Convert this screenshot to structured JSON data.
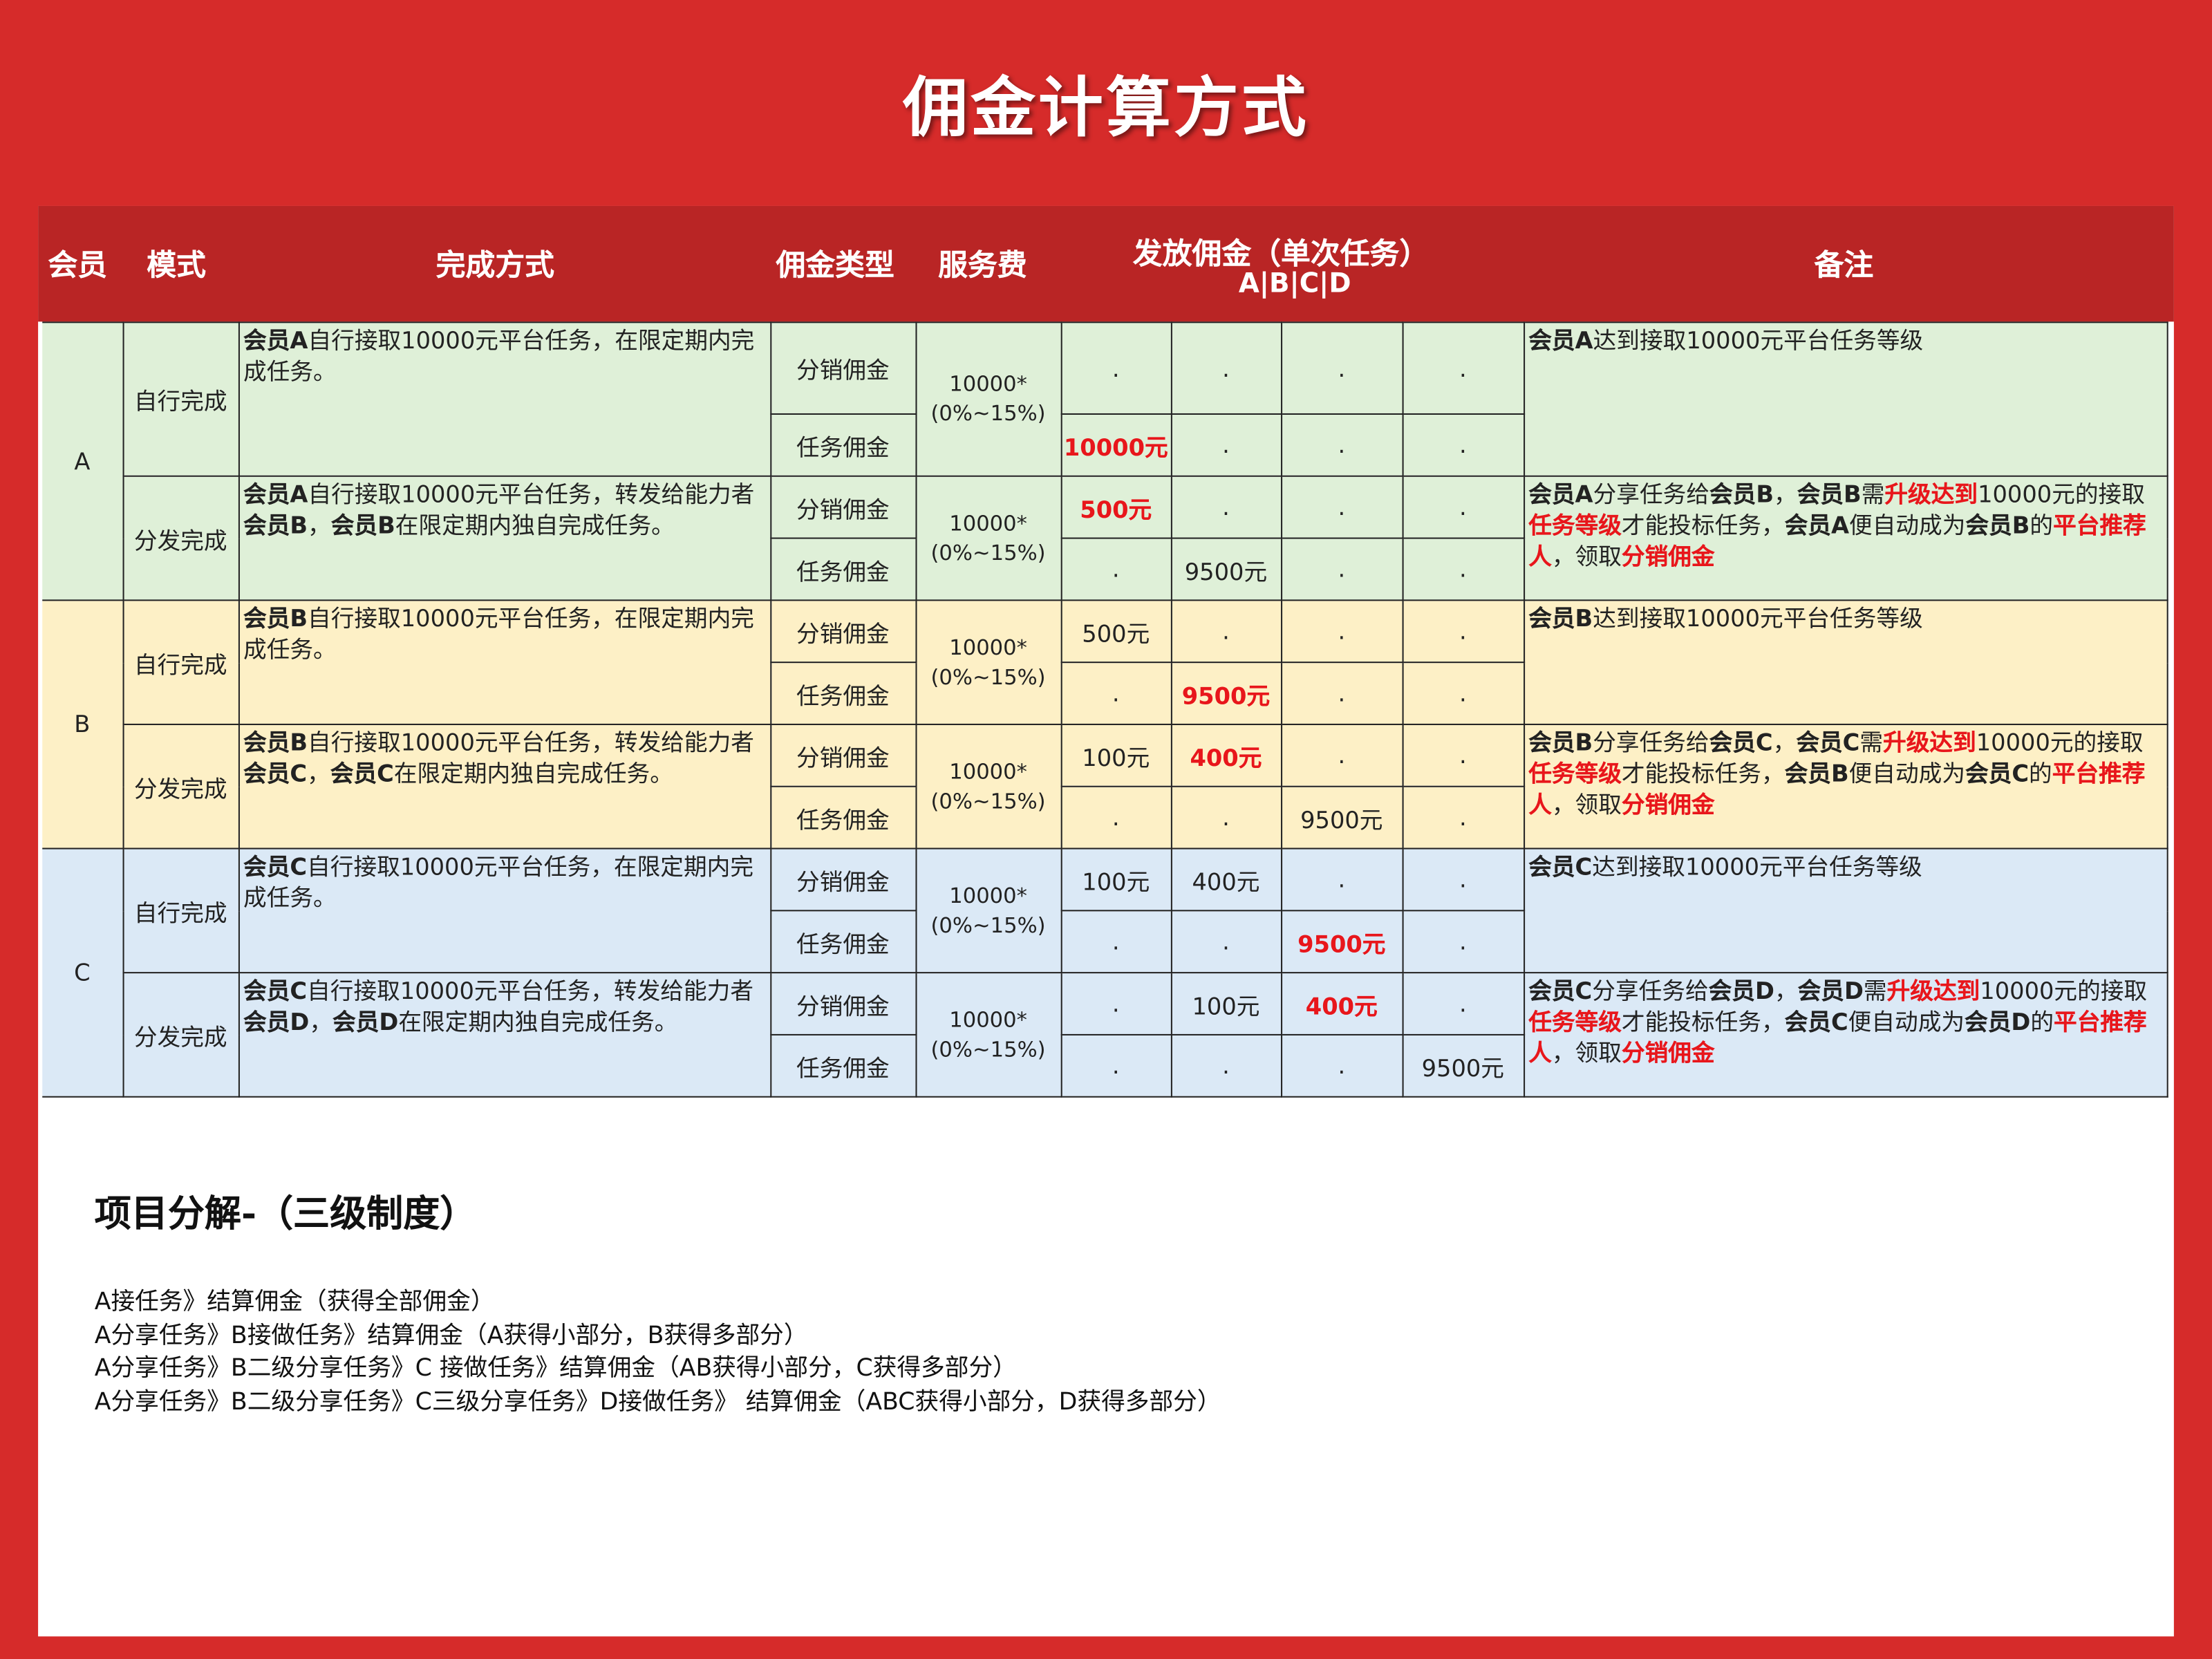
{
  "title": "佣金计算方式",
  "colors": {
    "background": "#d62b2a",
    "header": "#b92525",
    "highlight": "#e8161b",
    "groupA": "#dff0d8",
    "groupB": "#fdf0c6",
    "groupC": "#dbe9f6"
  },
  "header": {
    "member": "会员",
    "mode": "模式",
    "method": "完成方式",
    "type": "佣金类型",
    "fee": "服务费",
    "payout": "发放佣金（单次任务）",
    "payout_sub": "A|B|C|D",
    "note": "备注"
  },
  "groups": [
    {
      "member": "A",
      "modes": [
        {
          "label": "自行完成",
          "desc": [
            {
              "t": "会员A",
              "s": "b"
            },
            {
              "t": "自行接取10000元平台任务，在限定期内完成任务。",
              "s": ""
            }
          ],
          "fee": [
            "10000*",
            "(0%~15%)"
          ],
          "rows": [
            {
              "type": "分销佣金",
              "values": [
                {
                  "v": "."
                },
                {
                  "v": "."
                },
                {
                  "v": "."
                },
                {
                  "v": "."
                }
              ]
            },
            {
              "type": "任务佣金",
              "values": [
                {
                  "v": "10000元",
                  "red": true
                },
                {
                  "v": "."
                },
                {
                  "v": "."
                },
                {
                  "v": "."
                }
              ]
            }
          ],
          "note": [
            {
              "t": "会员A",
              "s": "b"
            },
            {
              "t": "达到接取10000元平台任务等级",
              "s": ""
            }
          ]
        },
        {
          "label": "分发完成",
          "desc": [
            {
              "t": "会员A",
              "s": "b"
            },
            {
              "t": "自行接取10000元平台任务，转发给能力者",
              "s": ""
            },
            {
              "t": "会员B",
              "s": "b"
            },
            {
              "t": "，",
              "s": ""
            },
            {
              "t": "会员B",
              "s": "b"
            },
            {
              "t": "在限定期内独自完成任务。",
              "s": ""
            }
          ],
          "fee": [
            "10000*",
            "(0%~15%)"
          ],
          "rows": [
            {
              "type": "分销佣金",
              "values": [
                {
                  "v": "500元",
                  "red": true
                },
                {
                  "v": "."
                },
                {
                  "v": "."
                },
                {
                  "v": "."
                }
              ]
            },
            {
              "type": "任务佣金",
              "values": [
                {
                  "v": "."
                },
                {
                  "v": "9500元"
                },
                {
                  "v": "."
                },
                {
                  "v": "."
                }
              ]
            }
          ],
          "note": [
            {
              "t": "会员A",
              "s": "b"
            },
            {
              "t": "分享任务给",
              "s": ""
            },
            {
              "t": "会员B",
              "s": "b"
            },
            {
              "t": "，",
              "s": ""
            },
            {
              "t": "会员B",
              "s": "b"
            },
            {
              "t": "需",
              "s": ""
            },
            {
              "t": "升级达到",
              "s": "r"
            },
            {
              "t": "10000元的接取",
              "s": ""
            },
            {
              "t": "任务等级",
              "s": "r"
            },
            {
              "t": "才能投标任务，",
              "s": ""
            },
            {
              "t": "会员A",
              "s": "b"
            },
            {
              "t": "便自动成为",
              "s": ""
            },
            {
              "t": "会员B",
              "s": "b"
            },
            {
              "t": "的",
              "s": ""
            },
            {
              "t": "平台推荐人",
              "s": "r"
            },
            {
              "t": "，领取",
              "s": ""
            },
            {
              "t": "分销佣金",
              "s": "r"
            }
          ]
        }
      ]
    },
    {
      "member": "B",
      "modes": [
        {
          "label": "自行完成",
          "desc": [
            {
              "t": "会员B",
              "s": "b"
            },
            {
              "t": "自行接取10000元平台任务，在限定期内完成任务。",
              "s": ""
            }
          ],
          "fee": [
            "10000*",
            "(0%~15%)"
          ],
          "rows": [
            {
              "type": "分销佣金",
              "values": [
                {
                  "v": "500元"
                },
                {
                  "v": "."
                },
                {
                  "v": "."
                },
                {
                  "v": "."
                }
              ]
            },
            {
              "type": "任务佣金",
              "values": [
                {
                  "v": "."
                },
                {
                  "v": "9500元",
                  "red": true
                },
                {
                  "v": "."
                },
                {
                  "v": "."
                }
              ]
            }
          ],
          "note": [
            {
              "t": "会员B",
              "s": "b"
            },
            {
              "t": "达到接取10000元平台任务等级",
              "s": ""
            }
          ]
        },
        {
          "label": "分发完成",
          "desc": [
            {
              "t": "会员B",
              "s": "b"
            },
            {
              "t": "自行接取10000元平台任务，转发给能力者",
              "s": ""
            },
            {
              "t": "会员C",
              "s": "b"
            },
            {
              "t": "，",
              "s": ""
            },
            {
              "t": "会员C",
              "s": "b"
            },
            {
              "t": "在限定期内独自完成任务。",
              "s": ""
            }
          ],
          "fee": [
            "10000*",
            "(0%~15%)"
          ],
          "rows": [
            {
              "type": "分销佣金",
              "values": [
                {
                  "v": "100元"
                },
                {
                  "v": "400元",
                  "red": true
                },
                {
                  "v": "."
                },
                {
                  "v": "."
                }
              ]
            },
            {
              "type": "任务佣金",
              "values": [
                {
                  "v": "."
                },
                {
                  "v": "."
                },
                {
                  "v": "9500元"
                },
                {
                  "v": "."
                }
              ]
            }
          ],
          "note": [
            {
              "t": "会员B",
              "s": "b"
            },
            {
              "t": "分享任务给",
              "s": ""
            },
            {
              "t": "会员C",
              "s": "b"
            },
            {
              "t": "，",
              "s": ""
            },
            {
              "t": "会员C",
              "s": "b"
            },
            {
              "t": "需",
              "s": ""
            },
            {
              "t": "升级达到",
              "s": "r"
            },
            {
              "t": "10000元的接取",
              "s": ""
            },
            {
              "t": "任务等级",
              "s": "r"
            },
            {
              "t": "才能投标任务，",
              "s": ""
            },
            {
              "t": "会员B",
              "s": "b"
            },
            {
              "t": "便自动成为",
              "s": ""
            },
            {
              "t": "会员C",
              "s": "b"
            },
            {
              "t": "的",
              "s": ""
            },
            {
              "t": "平台推荐人",
              "s": "r"
            },
            {
              "t": "，领取",
              "s": ""
            },
            {
              "t": "分销佣金",
              "s": "r"
            }
          ]
        }
      ]
    },
    {
      "member": "C",
      "modes": [
        {
          "label": "自行完成",
          "desc": [
            {
              "t": "会员C",
              "s": "b"
            },
            {
              "t": "自行接取10000元平台任务，在限定期内完成任务。",
              "s": ""
            }
          ],
          "fee": [
            "10000*",
            "(0%~15%)"
          ],
          "rows": [
            {
              "type": "分销佣金",
              "values": [
                {
                  "v": "100元"
                },
                {
                  "v": "400元"
                },
                {
                  "v": "."
                },
                {
                  "v": "."
                }
              ]
            },
            {
              "type": "任务佣金",
              "values": [
                {
                  "v": "."
                },
                {
                  "v": "."
                },
                {
                  "v": "9500元",
                  "red": true
                },
                {
                  "v": "."
                }
              ]
            }
          ],
          "note": [
            {
              "t": "会员C",
              "s": "b"
            },
            {
              "t": "达到接取10000元平台任务等级",
              "s": ""
            }
          ]
        },
        {
          "label": "分发完成",
          "desc": [
            {
              "t": "会员C",
              "s": "b"
            },
            {
              "t": "自行接取10000元平台任务，转发给能力者",
              "s": ""
            },
            {
              "t": "会员D",
              "s": "b"
            },
            {
              "t": "，",
              "s": ""
            },
            {
              "t": "会员D",
              "s": "b"
            },
            {
              "t": "在限定期内独自完成任务。",
              "s": ""
            }
          ],
          "fee": [
            "10000*",
            "(0%~15%)"
          ],
          "rows": [
            {
              "type": "分销佣金",
              "values": [
                {
                  "v": "."
                },
                {
                  "v": "100元"
                },
                {
                  "v": "400元",
                  "red": true
                },
                {
                  "v": "."
                }
              ]
            },
            {
              "type": "任务佣金",
              "values": [
                {
                  "v": "."
                },
                {
                  "v": "."
                },
                {
                  "v": "."
                },
                {
                  "v": "9500元"
                }
              ]
            }
          ],
          "note": [
            {
              "t": "会员C",
              "s": "b"
            },
            {
              "t": "分享任务给",
              "s": ""
            },
            {
              "t": "会员D",
              "s": "b"
            },
            {
              "t": "，",
              "s": ""
            },
            {
              "t": "会员D",
              "s": "b"
            },
            {
              "t": "需",
              "s": ""
            },
            {
              "t": "升级达到",
              "s": "r"
            },
            {
              "t": "10000元的接取",
              "s": ""
            },
            {
              "t": "任务等级",
              "s": "r"
            },
            {
              "t": "才能投标任务，",
              "s": ""
            },
            {
              "t": "会员C",
              "s": "b"
            },
            {
              "t": "便自动成为",
              "s": ""
            },
            {
              "t": "会员D",
              "s": "b"
            },
            {
              "t": "的",
              "s": ""
            },
            {
              "t": "平台推荐人",
              "s": "r"
            },
            {
              "t": "，领取",
              "s": ""
            },
            {
              "t": "分销佣金",
              "s": "r"
            }
          ]
        }
      ]
    }
  ],
  "breakdown": {
    "title": "项目分解-（三级制度）",
    "lines": [
      "A接任务》结算佣金（获得全部佣金）",
      "A分享任务》B接做任务》结算佣金（A获得小部分，B获得多部分）",
      "A分享任务》B二级分享任务》C 接做任务》结算佣金（AB获得小部分，C获得多部分）",
      "A分享任务》B二级分享任务》C三级分享任务》D接做任务》 结算佣金（ABC获得小部分，D获得多部分）"
    ]
  }
}
